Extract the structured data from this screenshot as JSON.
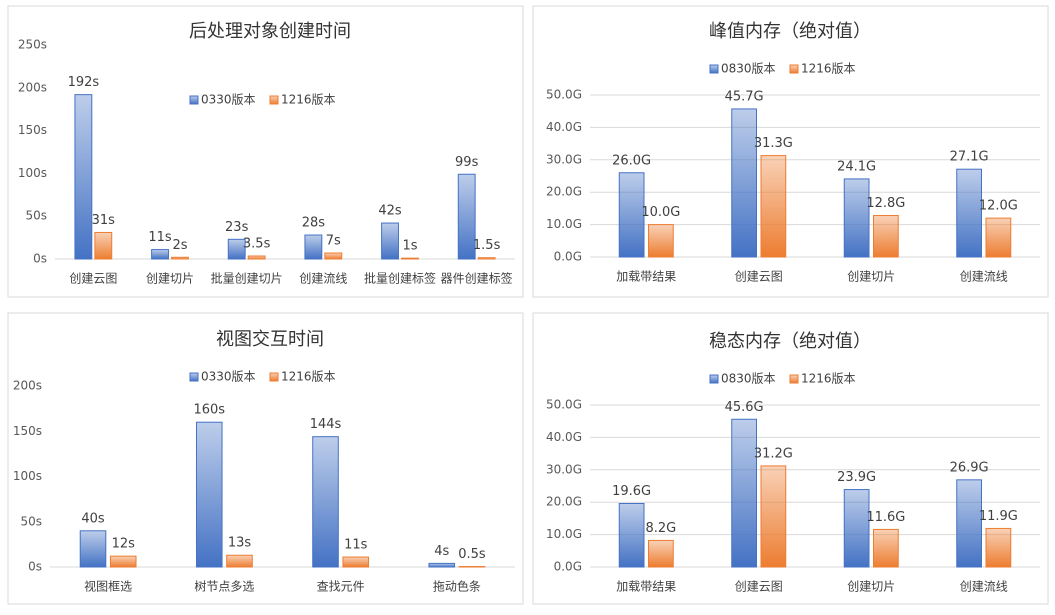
{
  "chart_data": [
    {
      "type": "bar",
      "title": "后处理对象创建时间",
      "categories": [
        "创建云图",
        "创建切片",
        "批量创建切片",
        "创建流线",
        "批量创建标签",
        "器件创建标签"
      ],
      "series": [
        {
          "name": "0330版本",
          "color": "#4472c4",
          "values": [
            192,
            11,
            23,
            28,
            42,
            99
          ],
          "value_labels": [
            "192s",
            "11s",
            "23s",
            "28s",
            "42s",
            "99s"
          ]
        },
        {
          "name": "1216版本",
          "color": "#ed7d31",
          "values": [
            31,
            2,
            3.5,
            7,
            1,
            1.5
          ],
          "value_labels": [
            "31s",
            "2s",
            "3.5s",
            "7s",
            "1s",
            "1.5s"
          ]
        }
      ],
      "ylim": [
        0,
        250
      ],
      "yticks": [
        {
          "value": 0,
          "label": "0s"
        },
        {
          "value": 50,
          "label": "50s"
        },
        {
          "value": 100,
          "label": "100s"
        },
        {
          "value": 150,
          "label": "150s"
        },
        {
          "value": 200,
          "label": "200s"
        },
        {
          "value": 250,
          "label": "250s"
        }
      ],
      "grid": false,
      "legend": "center"
    },
    {
      "type": "bar",
      "title": "峰值内存（绝对值）",
      "categories": [
        "加载带结果",
        "创建云图",
        "创建切片",
        "创建流线"
      ],
      "series": [
        {
          "name": "0830版本",
          "color": "#4472c4",
          "values": [
            26.0,
            45.7,
            24.1,
            27.1
          ],
          "value_labels": [
            "26.0G",
            "45.7G",
            "24.1G",
            "27.1G"
          ]
        },
        {
          "name": "1216版本",
          "color": "#ed7d31",
          "values": [
            10.0,
            31.3,
            12.8,
            12.0
          ],
          "value_labels": [
            "10.0G",
            "31.3G",
            "12.8G",
            "12.0G"
          ]
        }
      ],
      "ylim": [
        0,
        50
      ],
      "yticks": [
        {
          "value": 0,
          "label": "0.0G"
        },
        {
          "value": 10,
          "label": "10.0G"
        },
        {
          "value": 20,
          "label": "20.0G"
        },
        {
          "value": 30,
          "label": "30.0G"
        },
        {
          "value": 40,
          "label": "40.0G"
        },
        {
          "value": 50,
          "label": "50.0G"
        }
      ],
      "grid": true,
      "legend": "top"
    },
    {
      "type": "bar",
      "title": "视图交互时间",
      "categories": [
        "视图框选",
        "树节点多选",
        "查找元件",
        "拖动色条"
      ],
      "series": [
        {
          "name": "0330版本",
          "color": "#4472c4",
          "values": [
            40,
            160,
            144,
            4
          ],
          "value_labels": [
            "40s",
            "160s",
            "144s",
            "4s"
          ]
        },
        {
          "name": "1216版本",
          "color": "#ed7d31",
          "values": [
            12,
            13,
            11,
            0.5
          ],
          "value_labels": [
            "12s",
            "13s",
            "11s",
            "0.5s"
          ]
        }
      ],
      "ylim": [
        0,
        200
      ],
      "yticks": [
        {
          "value": 0,
          "label": "0s"
        },
        {
          "value": 50,
          "label": "50s"
        },
        {
          "value": 100,
          "label": "100s"
        },
        {
          "value": 150,
          "label": "150s"
        },
        {
          "value": 200,
          "label": "200s"
        }
      ],
      "grid": false,
      "legend": "top"
    },
    {
      "type": "bar",
      "title": "稳态内存（绝对值）",
      "categories": [
        "加载带结果",
        "创建云图",
        "创建切片",
        "创建流线"
      ],
      "series": [
        {
          "name": "0830版本",
          "color": "#4472c4",
          "values": [
            19.6,
            45.6,
            23.9,
            26.9
          ],
          "value_labels": [
            "19.6G",
            "45.6G",
            "23.9G",
            "26.9G"
          ]
        },
        {
          "name": "1216版本",
          "color": "#ed7d31",
          "values": [
            8.2,
            31.2,
            11.6,
            11.9
          ],
          "value_labels": [
            "8.2G",
            "31.2G",
            "11.6G",
            "11.9G"
          ]
        }
      ],
      "ylim": [
        0,
        50
      ],
      "yticks": [
        {
          "value": 0,
          "label": "0.0G"
        },
        {
          "value": 10,
          "label": "10.0G"
        },
        {
          "value": 20,
          "label": "20.0G"
        },
        {
          "value": 30,
          "label": "30.0G"
        },
        {
          "value": 40,
          "label": "40.0G"
        },
        {
          "value": 50,
          "label": "50.0G"
        }
      ],
      "grid": true,
      "legend": "top"
    }
  ]
}
